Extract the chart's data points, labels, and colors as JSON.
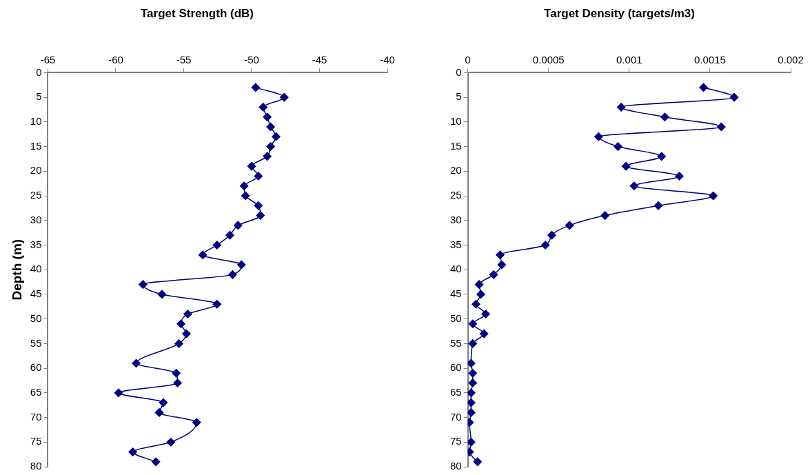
{
  "chart_data": [
    {
      "type": "line",
      "title": "Target Strength (dB)",
      "ylabel": "Depth (m)",
      "xlim": [
        -65,
        -40
      ],
      "xticks": [
        -65,
        -60,
        -55,
        -50,
        -45,
        -40
      ],
      "ylim": [
        80,
        0
      ],
      "yticks": [
        0,
        5,
        10,
        15,
        20,
        25,
        30,
        35,
        40,
        45,
        50,
        55,
        60,
        65,
        70,
        75,
        80
      ],
      "marker": "diamond",
      "line_style": "solid",
      "grid": false,
      "series": [
        {
          "color": "#000080",
          "x": [
            -49.7,
            -47.6,
            -49.15,
            -48.85,
            -48.6,
            -48.2,
            -48.6,
            -48.85,
            -50.0,
            -49.5,
            -50.55,
            -50.45,
            -49.5,
            -49.35,
            -51.0,
            -51.6,
            -52.55,
            -53.6,
            -50.75,
            -51.4,
            -58.0,
            -56.6,
            -52.55,
            -54.7,
            -55.2,
            -54.8,
            -55.35,
            -58.5,
            -55.55,
            -55.45,
            -59.8,
            -56.5,
            -56.8,
            -54.05,
            -55.95,
            -58.75,
            -57.05
          ],
          "values": [
            3,
            5,
            7,
            9,
            11,
            13,
            15,
            17,
            19,
            21,
            23,
            25,
            27,
            29,
            31,
            33,
            35,
            37,
            39,
            41,
            43,
            45,
            47,
            49,
            51,
            53,
            55,
            59,
            61,
            63,
            65,
            67,
            69,
            71,
            75,
            77,
            79
          ]
        }
      ]
    },
    {
      "type": "line",
      "title": "Target Density (targets/m3)",
      "xlim": [
        0,
        0.002
      ],
      "xticks": [
        0,
        0.0005,
        0.001,
        0.0015,
        0.002
      ],
      "ylim": [
        80,
        0
      ],
      "yticks": [
        0,
        5,
        10,
        15,
        20,
        25,
        30,
        35,
        40,
        45,
        50,
        55,
        60,
        65,
        70,
        75,
        80
      ],
      "marker": "diamond",
      "line_style": "solid",
      "grid": false,
      "series": [
        {
          "color": "#000080",
          "x": [
            0.00146,
            0.00165,
            0.00095,
            0.00122,
            0.00157,
            0.00081,
            0.00093,
            0.0012,
            0.00098,
            0.00131,
            0.00103,
            0.00152,
            0.00118,
            0.00085,
            0.00063,
            0.00052,
            0.00048,
            0.0002,
            0.00021,
            0.00016,
            7e-05,
            8e-05,
            5e-05,
            0.00011,
            3e-05,
            0.0001,
            3e-05,
            2e-05,
            3e-05,
            3e-05,
            2e-05,
            2e-05,
            2e-05,
            1e-05,
            2e-05,
            1e-05,
            6e-05
          ],
          "values": [
            3,
            5,
            7,
            9,
            11,
            13,
            15,
            17,
            19,
            21,
            23,
            25,
            27,
            29,
            31,
            33,
            35,
            37,
            39,
            41,
            43,
            45,
            47,
            49,
            51,
            53,
            55,
            59,
            61,
            63,
            65,
            67,
            69,
            71,
            75,
            77,
            79
          ]
        }
      ]
    }
  ]
}
